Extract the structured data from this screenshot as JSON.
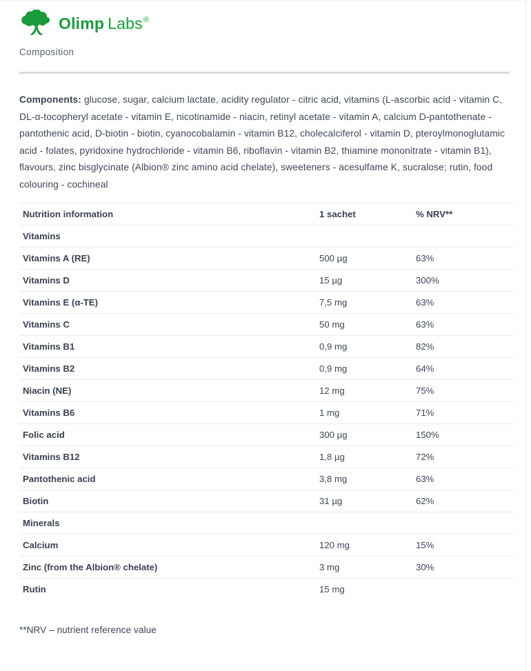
{
  "brand": {
    "icon": "tree-icon",
    "name_primary": "Olimp",
    "name_secondary": "Labs",
    "registered_mark": "®",
    "brand_green": "#1b9a3c"
  },
  "page": {
    "section_label": "Composition",
    "text_color": "#3d4554",
    "divider_color": "#d9dadd",
    "row_border_color": "#e9eaed"
  },
  "components": {
    "label": "Components:",
    "text": "glucose, sugar, calcium lactate, acidity regulator - citric acid, vitamins (L-ascorbic acid - vitamin C, DL-α-tocopheryl acetate - vitamin E, nicotinamide - niacin, retinyl acetate - vitamin A, calcium D-pantothenate - pantothenic acid, D-biotin - biotin, cyanocobalamin - vitamin B12, cholecalciferol - vitamin D, pteroylmonoglutamic acid - folates, pyridoxine hydrochloride - vitamin B6, riboflavin - vitamin B2, thiamine mononitrate - vitamin B1), flavours, zinc bisglycinate (Albion® zinc amino acid chelate), sweeteners - acesulfame K, sucralose; rutin, food colouring - cochineal"
  },
  "nutrition_table": {
    "headers": [
      "Nutrition information",
      "1 sachet",
      "% NRV**"
    ],
    "rows": [
      {
        "type": "section",
        "label": "Vitamins"
      },
      {
        "type": "data",
        "label": "Vitamins A (RE)",
        "amount": "500 µg",
        "nrv": "63%"
      },
      {
        "type": "data",
        "label": "Vitamins D",
        "amount": "15 µg",
        "nrv": "300%"
      },
      {
        "type": "data",
        "label": "Vitamins E (α-TE)",
        "amount": "7,5 mg",
        "nrv": "63%"
      },
      {
        "type": "data",
        "label": "Vitamins C",
        "amount": "50 mg",
        "nrv": "63%"
      },
      {
        "type": "data",
        "label": "Vitamins B1",
        "amount": "0,9 mg",
        "nrv": "82%"
      },
      {
        "type": "data",
        "label": "Vitamins B2",
        "amount": "0,9 mg",
        "nrv": "64%"
      },
      {
        "type": "data",
        "label": "Niacin (NE)",
        "amount": "12 mg",
        "nrv": "75%"
      },
      {
        "type": "data",
        "label": "Vitamins B6",
        "amount": "1 mg",
        "nrv": "71%"
      },
      {
        "type": "data",
        "label": "Folic acid",
        "amount": "300 µg",
        "nrv": "150%"
      },
      {
        "type": "data",
        "label": "Vitamins B12",
        "amount": "1,8 µg",
        "nrv": "72%"
      },
      {
        "type": "data",
        "label": "Pantothenic acid",
        "amount": "3,8 mg",
        "nrv": "63%"
      },
      {
        "type": "data",
        "label": "Biotin",
        "amount": "31 µg",
        "nrv": "62%"
      },
      {
        "type": "section",
        "label": "Minerals"
      },
      {
        "type": "data",
        "label": "Calcium",
        "amount": "120 mg",
        "nrv": "15%"
      },
      {
        "type": "data",
        "label": "Zinc (from the Albion® chelate)",
        "amount": "3 mg",
        "nrv": "30%"
      },
      {
        "type": "data",
        "label": "Rutin",
        "amount": "15 mg",
        "nrv": ""
      }
    ]
  },
  "footnote": "**NRV – nutrient reference value"
}
